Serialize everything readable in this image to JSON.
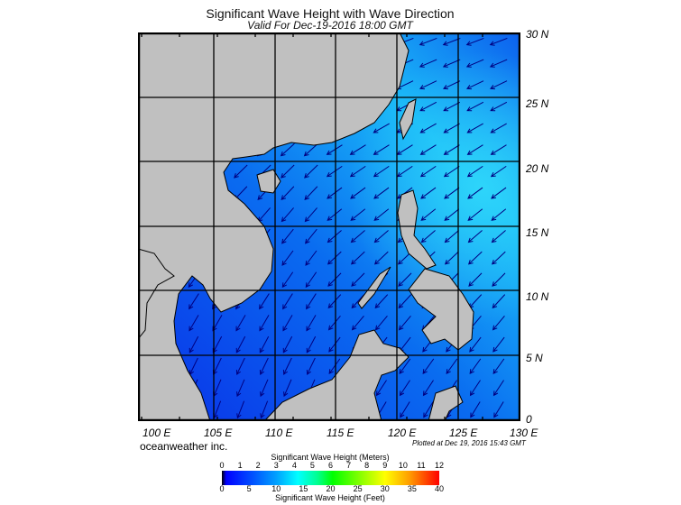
{
  "title": "Significant Wave Height with Wave Direction",
  "subtitle": "Valid For Dec-19-2016 18:00 GMT",
  "map": {
    "region": "South China Sea",
    "lat_labels": [
      "30 N",
      "25 N",
      "20 N",
      "15 N",
      "10 N",
      "5 N",
      "0"
    ],
    "lon_labels": [
      "100 E",
      "105 E",
      "110 E",
      "115 E",
      "120 E",
      "125 E",
      "130 E"
    ],
    "land_color": "#c0c0c0",
    "arrow_color": "#000080",
    "wave_direction": "toward southwest"
  },
  "brand": "oceanweather inc.",
  "plotted": "Plotted at Dec 19, 2016 15:43 GMT",
  "colorbar": {
    "title_meters": "Significant Wave Height (Meters)",
    "title_feet": "Significant Wave Height (Feet)",
    "meters_ticks": [
      "0",
      "1",
      "2",
      "3",
      "4",
      "5",
      "6",
      "7",
      "8",
      "9",
      "10",
      "11",
      "12"
    ],
    "feet_ticks": [
      "0",
      "5",
      "10",
      "15",
      "20",
      "25",
      "30",
      "35",
      "40"
    ]
  }
}
